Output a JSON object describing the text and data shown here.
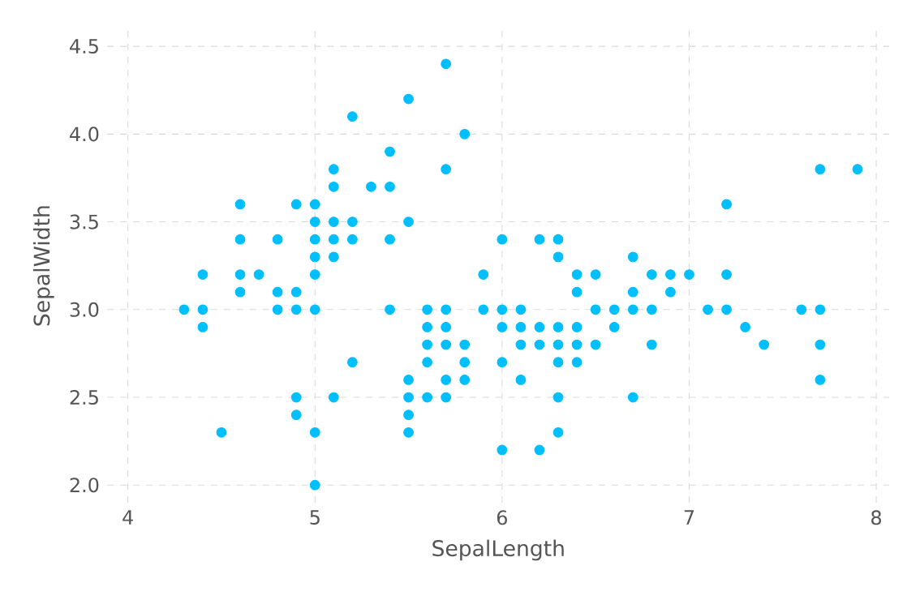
{
  "chart_data": {
    "type": "scatter",
    "xlabel": "SepalLength",
    "ylabel": "SepalWidth",
    "x": [
      4.3,
      4.4,
      4.4,
      4.4,
      4.5,
      4.6,
      4.6,
      4.6,
      4.6,
      4.7,
      4.8,
      4.8,
      4.8,
      4.9,
      4.9,
      4.9,
      4.9,
      4.9,
      5.0,
      5.0,
      5.0,
      5.0,
      5.0,
      5.0,
      5.0,
      5.0,
      5.1,
      5.1,
      5.1,
      5.1,
      5.1,
      5.1,
      5.2,
      5.2,
      5.2,
      5.2,
      5.3,
      5.4,
      5.4,
      5.4,
      5.4,
      5.5,
      5.5,
      5.5,
      5.5,
      5.5,
      5.5,
      5.6,
      5.6,
      5.6,
      5.6,
      5.6,
      5.7,
      5.7,
      5.7,
      5.7,
      5.7,
      5.7,
      5.7,
      5.8,
      5.8,
      5.8,
      5.8,
      5.9,
      5.9,
      6.0,
      6.0,
      6.0,
      6.0,
      6.0,
      6.1,
      6.1,
      6.1,
      6.1,
      6.2,
      6.2,
      6.2,
      6.2,
      6.3,
      6.3,
      6.3,
      6.3,
      6.3,
      6.3,
      6.3,
      6.4,
      6.4,
      6.4,
      6.4,
      6.4,
      6.5,
      6.5,
      6.5,
      6.6,
      6.6,
      6.7,
      6.7,
      6.7,
      6.7,
      6.8,
      6.8,
      6.8,
      6.9,
      6.9,
      7.0,
      7.1,
      7.2,
      7.2,
      7.2,
      7.3,
      7.4,
      7.6,
      7.7,
      7.7,
      7.7,
      7.7,
      7.9
    ],
    "values": [
      3.0,
      2.9,
      3.0,
      3.2,
      2.3,
      3.1,
      3.4,
      3.6,
      3.2,
      3.2,
      3.4,
      3.0,
      3.1,
      3.0,
      3.1,
      3.6,
      2.4,
      2.5,
      3.6,
      3.4,
      3.0,
      3.2,
      3.5,
      3.3,
      2.0,
      2.3,
      3.5,
      3.8,
      3.7,
      3.3,
      3.4,
      2.5,
      3.5,
      3.4,
      4.1,
      2.7,
      3.7,
      3.9,
      3.7,
      3.4,
      3.0,
      4.2,
      3.5,
      2.3,
      2.4,
      2.5,
      2.6,
      2.9,
      3.0,
      2.5,
      2.7,
      2.8,
      4.4,
      3.8,
      2.8,
      2.6,
      3.0,
      2.9,
      2.5,
      4.0,
      2.7,
      2.6,
      2.8,
      3.0,
      3.2,
      2.2,
      2.9,
      2.7,
      3.4,
      3.0,
      2.9,
      2.8,
      3.0,
      2.6,
      2.2,
      2.9,
      2.8,
      3.4,
      3.3,
      2.5,
      2.3,
      2.9,
      2.7,
      2.8,
      3.4,
      3.2,
      2.9,
      2.7,
      2.8,
      3.1,
      2.8,
      3.0,
      3.2,
      2.9,
      3.0,
      3.1,
      3.0,
      2.5,
      3.3,
      2.8,
      3.0,
      3.2,
      3.1,
      3.2,
      3.2,
      3.0,
      3.6,
      3.2,
      3.0,
      2.9,
      2.8,
      3.0,
      3.8,
      2.6,
      2.8,
      3.0,
      3.8
    ],
    "color": "#00bfff",
    "grid": true,
    "xlim": [
      3.89,
      8.07
    ],
    "ylim": [
      1.9,
      4.6
    ],
    "xticks": [
      4,
      5,
      6,
      7,
      8
    ],
    "yticks": [
      {
        "value": 2,
        "label": "2.0"
      },
      {
        "value": 2.5,
        "label": "2.5"
      },
      {
        "value": 3,
        "label": "3.0"
      },
      {
        "value": 3.5,
        "label": "3.5"
      },
      {
        "value": 4,
        "label": "4.0"
      },
      {
        "value": 4.5,
        "label": "4.5"
      }
    ]
  }
}
